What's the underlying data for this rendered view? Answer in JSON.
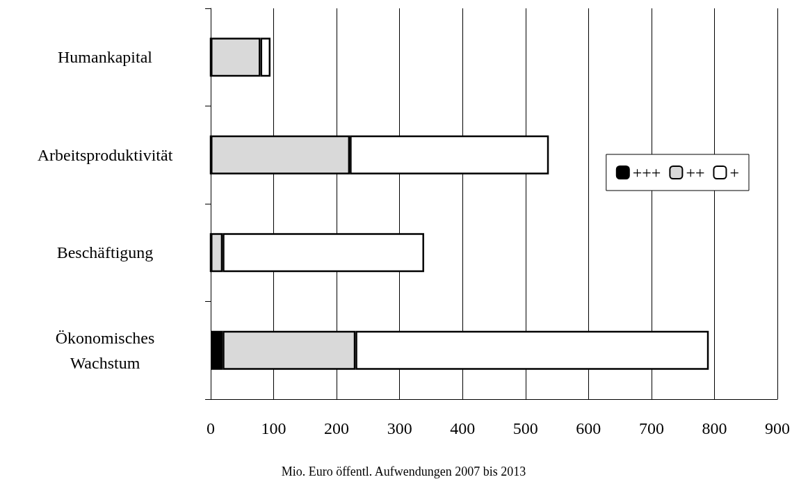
{
  "chart_data": {
    "type": "bar",
    "orientation": "horizontal",
    "stacked": true,
    "categories": [
      "Humankapital",
      "Arbeitsproduktivität",
      "Beschäftigung",
      "Ökonomisches\nWachstum"
    ],
    "series": [
      {
        "name": "+++",
        "color": "#000000",
        "values": [
          0,
          0,
          0,
          19
        ]
      },
      {
        "name": "++",
        "color": "#d9d9d9",
        "values": [
          79,
          221,
          19,
          211
        ]
      },
      {
        "name": "+",
        "color": "#ffffff",
        "values": [
          16,
          316,
          320,
          561
        ]
      }
    ],
    "xlabel": "Mio. Euro öffentl. Aufwendungen 2007 bis 2013",
    "xlim": [
      0,
      900
    ],
    "xticks": [
      0,
      100,
      200,
      300,
      400,
      500,
      600,
      700,
      800,
      900
    ],
    "grid": "x",
    "legend": "right"
  }
}
